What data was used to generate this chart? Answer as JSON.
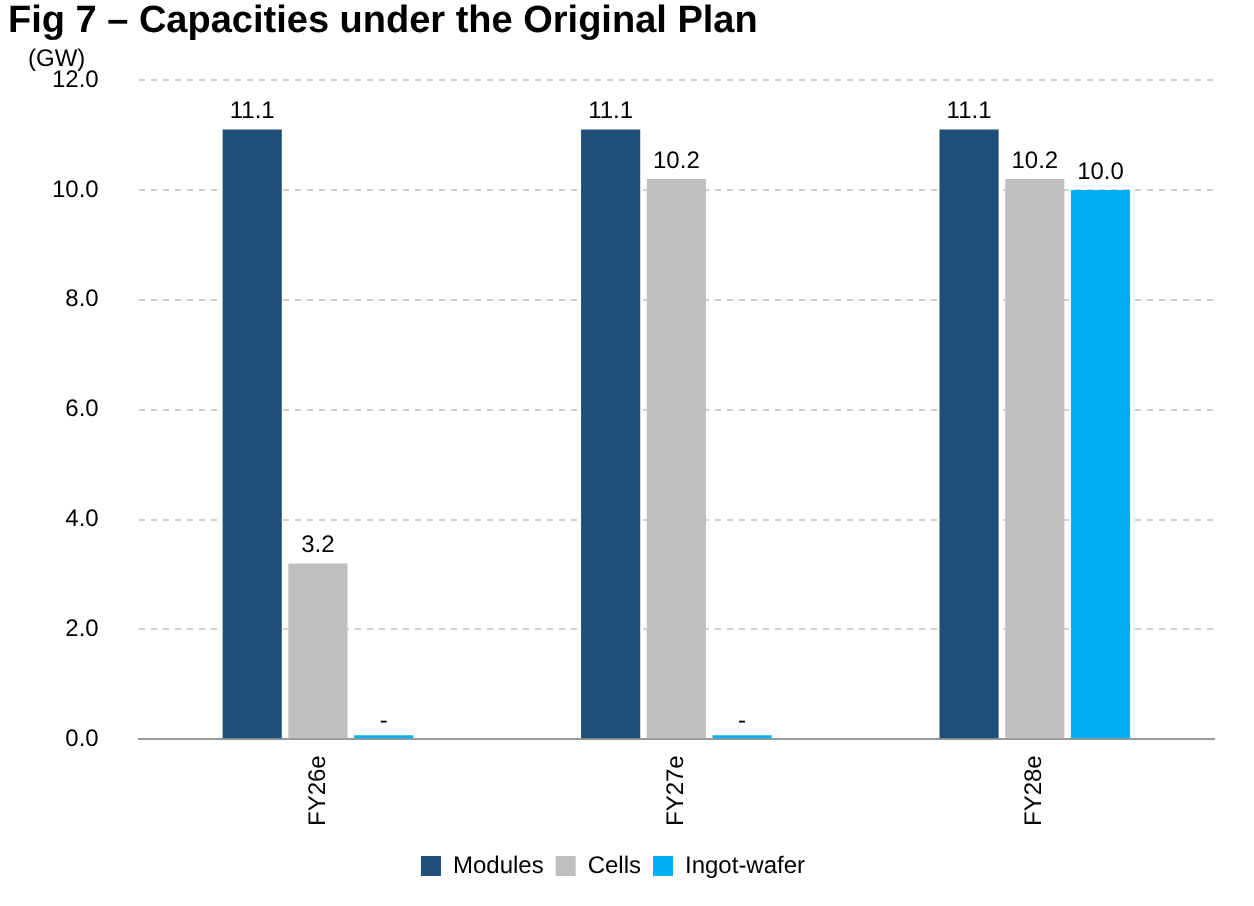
{
  "chart_data": {
    "type": "bar",
    "title": "Fig 7 – Capacities under the Original Plan",
    "ylabel": "(GW)",
    "categories": [
      "FY26e",
      "FY27e",
      "FY28e"
    ],
    "series": [
      {
        "name": "Modules",
        "color": "#1f4e79",
        "values": [
          11.1,
          11.1,
          11.1
        ],
        "value_labels": [
          "11.1",
          "11.1",
          "11.1"
        ]
      },
      {
        "name": "Cells",
        "color": "#bfbfbf",
        "values": [
          3.2,
          10.2,
          10.2
        ],
        "value_labels": [
          "3.2",
          "10.2",
          "10.2"
        ]
      },
      {
        "name": "Ingot-wafer",
        "color": "#00b0f0",
        "values": [
          0,
          0,
          10.0
        ],
        "value_labels": [
          "-",
          "-",
          "10.0"
        ]
      }
    ],
    "ylim": [
      0,
      12
    ],
    "yticks": [
      {
        "value": 0,
        "label": "0.0"
      },
      {
        "value": 2,
        "label": "2.0"
      },
      {
        "value": 4,
        "label": "4.0"
      },
      {
        "value": 6,
        "label": "6.0"
      },
      {
        "value": 8,
        "label": "8.0"
      },
      {
        "value": 10,
        "label": "10.0"
      },
      {
        "value": 12,
        "label": "12.0"
      }
    ],
    "grid": "y",
    "legend": "bottom"
  }
}
